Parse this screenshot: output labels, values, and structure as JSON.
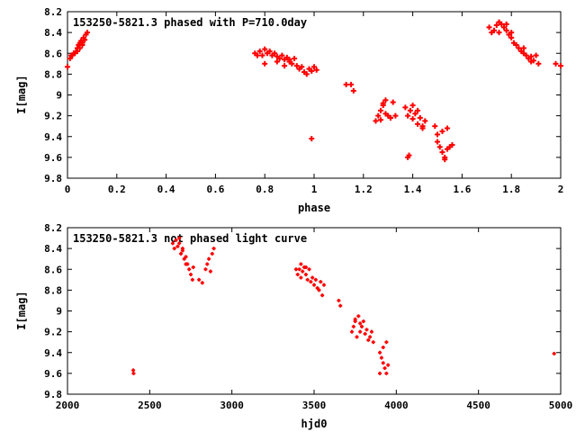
{
  "chart_data": [
    {
      "type": "scatter",
      "title": "153250-5821.3 phased with P=710.0day",
      "xlabel": "phase",
      "ylabel": "I[mag]",
      "xlim": [
        0,
        2
      ],
      "ylim": [
        8.2,
        9.8
      ],
      "y_inverted": true,
      "grid": false,
      "xticks": [
        0,
        0.2,
        0.4,
        0.6,
        0.8,
        1,
        1.2,
        1.4,
        1.6,
        1.8,
        2
      ],
      "xtick_labels": [
        "0",
        "0.2",
        "0.4",
        "0.6",
        "0.8",
        "1",
        "1.2",
        "1.4",
        "1.6",
        "1.8",
        "2"
      ],
      "yticks": [
        8.2,
        8.4,
        8.6,
        8.8,
        9,
        9.2,
        9.4,
        9.6,
        9.8
      ],
      "ytick_labels": [
        "8.2",
        "8.4",
        "8.6",
        "8.8",
        "9",
        "9.2",
        "9.4",
        "9.6",
        "9.8"
      ],
      "marker_color": "#ff0000",
      "marker": "plus",
      "series": [
        {
          "x": [
            0.0,
            0.01,
            0.015,
            0.02,
            0.025,
            0.03,
            0.035,
            0.04,
            0.045,
            0.05,
            0.055,
            0.06,
            0.065,
            0.07,
            0.075,
            0.08,
            0.04,
            0.05,
            0.06,
            0.76,
            0.77,
            0.78,
            0.79,
            0.8,
            0.81,
            0.82,
            0.83,
            0.84,
            0.85,
            0.86,
            0.87,
            0.88,
            0.89,
            0.9,
            0.91,
            0.92,
            0.93,
            0.94,
            0.95,
            0.96,
            0.97,
            0.98,
            0.99,
            1.0,
            1.01,
            0.8,
            0.85,
            0.88,
            0.9,
            0.99,
            1.13,
            1.15,
            1.16,
            1.25,
            1.26,
            1.27,
            1.28,
            1.29,
            1.3,
            1.31,
            1.32,
            1.33,
            1.27,
            1.29,
            1.31,
            1.28,
            1.37,
            1.38,
            1.39,
            1.4,
            1.41,
            1.42,
            1.43,
            1.44,
            1.45,
            1.38,
            1.4,
            1.42,
            1.44,
            1.385,
            1.49,
            1.5,
            1.51,
            1.52,
            1.53,
            1.54,
            1.55,
            1.56,
            1.5,
            1.52,
            1.54,
            1.53,
            1.71,
            1.72,
            1.73,
            1.74,
            1.75,
            1.76,
            1.77,
            1.78,
            1.79,
            1.8,
            1.81,
            1.82,
            1.83,
            1.84,
            1.85,
            1.86,
            1.87,
            1.88,
            1.89,
            1.9,
            1.91,
            1.75,
            1.78,
            1.8,
            1.85,
            1.88,
            1.98,
            2.0
          ],
          "y": [
            8.73,
            8.65,
            8.62,
            8.62,
            8.6,
            8.6,
            8.58,
            8.55,
            8.52,
            8.5,
            8.48,
            8.5,
            8.45,
            8.47,
            8.42,
            8.4,
            8.58,
            8.55,
            8.52,
            8.6,
            8.62,
            8.58,
            8.62,
            8.56,
            8.6,
            8.58,
            8.62,
            8.6,
            8.63,
            8.65,
            8.62,
            8.66,
            8.64,
            8.68,
            8.7,
            8.65,
            8.72,
            8.75,
            8.73,
            8.78,
            8.8,
            8.75,
            8.77,
            8.73,
            8.76,
            8.7,
            8.68,
            8.72,
            8.66,
            9.42,
            8.9,
            8.9,
            8.96,
            9.25,
            9.2,
            9.15,
            9.1,
            9.05,
            9.2,
            9.22,
            9.07,
            9.2,
            9.24,
            9.18,
            9.22,
            9.08,
            9.12,
            9.2,
            9.15,
            9.23,
            9.18,
            9.28,
            9.22,
            9.3,
            9.25,
            9.6,
            9.1,
            9.15,
            9.32,
            9.58,
            9.3,
            9.45,
            9.5,
            9.55,
            9.6,
            9.52,
            9.5,
            9.48,
            9.38,
            9.35,
            9.32,
            9.62,
            8.35,
            8.4,
            8.38,
            8.33,
            8.3,
            8.32,
            8.35,
            8.38,
            8.42,
            8.45,
            8.5,
            8.52,
            8.55,
            8.58,
            8.6,
            8.62,
            8.65,
            8.63,
            8.67,
            8.62,
            8.7,
            8.4,
            8.32,
            8.4,
            8.55,
            8.68,
            8.7,
            8.72
          ]
        }
      ]
    },
    {
      "type": "scatter",
      "title": "153250-5821.3 not phased light curve",
      "xlabel": "hjd0",
      "ylabel": "I[mag]",
      "xlim": [
        2000,
        5000
      ],
      "ylim": [
        8.2,
        9.8
      ],
      "y_inverted": true,
      "grid": false,
      "xticks": [
        2000,
        2500,
        3000,
        3500,
        4000,
        4500,
        5000
      ],
      "xtick_labels": [
        "2000",
        "2500",
        "3000",
        "3500",
        "4000",
        "4500",
        "5000"
      ],
      "yticks": [
        8.2,
        8.4,
        8.6,
        8.8,
        9,
        9.2,
        9.4,
        9.6,
        9.8
      ],
      "ytick_labels": [
        "8.2",
        "8.4",
        "8.6",
        "8.8",
        "9",
        "9.2",
        "9.4",
        "9.6",
        "9.8"
      ],
      "marker_color": "#ff0000",
      "marker": "plus",
      "series": [
        {
          "x": [
            2400,
            2402,
            2640,
            2650,
            2660,
            2670,
            2680,
            2690,
            2700,
            2710,
            2720,
            2730,
            2740,
            2750,
            2760,
            2765,
            2680,
            2700,
            2720,
            2800,
            2820,
            2840,
            2850,
            2860,
            2870,
            2880,
            2890,
            3390,
            3400,
            3410,
            3420,
            3430,
            3440,
            3450,
            3460,
            3470,
            3480,
            3490,
            3500,
            3510,
            3520,
            3530,
            3540,
            3550,
            3560,
            3420,
            3450,
            3650,
            3660,
            3730,
            3740,
            3750,
            3760,
            3770,
            3780,
            3790,
            3800,
            3810,
            3820,
            3830,
            3840,
            3850,
            3860,
            3750,
            3780,
            3900,
            3910,
            3920,
            3930,
            3940,
            3950,
            3900,
            3920,
            3940,
            4960
          ],
          "y": [
            9.57,
            9.6,
            8.35,
            8.4,
            8.32,
            8.38,
            8.35,
            8.45,
            8.4,
            8.5,
            8.48,
            8.55,
            8.6,
            8.65,
            8.7,
            8.58,
            8.3,
            8.42,
            8.55,
            8.7,
            8.73,
            8.6,
            8.55,
            8.5,
            8.62,
            8.45,
            8.4,
            8.6,
            8.65,
            8.6,
            8.55,
            8.62,
            8.58,
            8.65,
            8.7,
            8.6,
            8.72,
            8.68,
            8.75,
            8.7,
            8.78,
            8.8,
            8.72,
            8.85,
            8.75,
            8.68,
            8.58,
            8.9,
            8.95,
            9.2,
            9.15,
            9.1,
            9.25,
            9.05,
            9.2,
            9.15,
            9.1,
            9.22,
            9.18,
            9.28,
            9.25,
            9.2,
            9.3,
            9.08,
            9.12,
            9.4,
            9.45,
            9.5,
            9.55,
            9.6,
            9.52,
            9.6,
            9.35,
            9.3,
            9.41
          ]
        }
      ]
    }
  ]
}
